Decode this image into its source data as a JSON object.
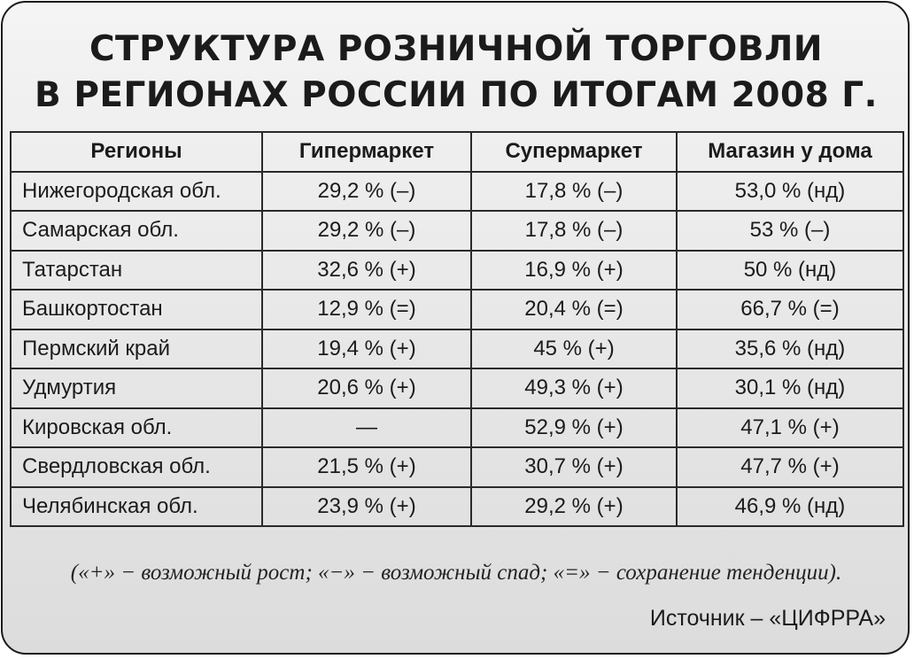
{
  "title": {
    "line1": "СТРУКТУРА РОЗНИЧНОЙ ТОРГОВЛИ",
    "line2": "В РЕГИОНАХ РОССИИ ПО ИТОГАМ 2008 Г."
  },
  "table": {
    "headers": [
      "Регионы",
      "Гипермаркет",
      "Супермаркет",
      "Магазин у дома"
    ],
    "rows": [
      [
        "Нижегородская обл.",
        "29,2 % (–)",
        "17,8 % (–)",
        "53,0 % (нд)"
      ],
      [
        "Самарская обл.",
        "29,2 % (–)",
        "17,8 % (–)",
        "53 % (–)"
      ],
      [
        "Татарстан",
        "32,6 % (+)",
        "16,9 % (+)",
        "50 % (нд)"
      ],
      [
        "Башкортостан",
        "12,9 % (=)",
        "20,4 % (=)",
        "66,7 % (=)"
      ],
      [
        "Пермский край",
        "19,4 % (+)",
        "45 % (+)",
        "35,6 % (нд)"
      ],
      [
        "Удмуртия",
        "20,6 % (+)",
        "49,3 % (+)",
        "30,1 % (нд)"
      ],
      [
        "Кировская обл.",
        "—",
        "52,9 % (+)",
        "47,1 % (+)"
      ],
      [
        "Свердловская обл.",
        "21,5 % (+)",
        "30,7 % (+)",
        "47,7 % (+)"
      ],
      [
        "Челябинская обл.",
        "23,9 % (+)",
        "29,2 % (+)",
        "46,9 % (нд)"
      ]
    ]
  },
  "legend": "(«+» − возможный рост; «−» − возможный спад; «=» − сохранение тенденции).",
  "source": "Источник – «ЦИФРРА»",
  "colors": {
    "border": "#1a1a1a",
    "text": "#1b1b1b",
    "background_top": "#f4f4f4",
    "background_bottom": "#dcdcdc"
  }
}
